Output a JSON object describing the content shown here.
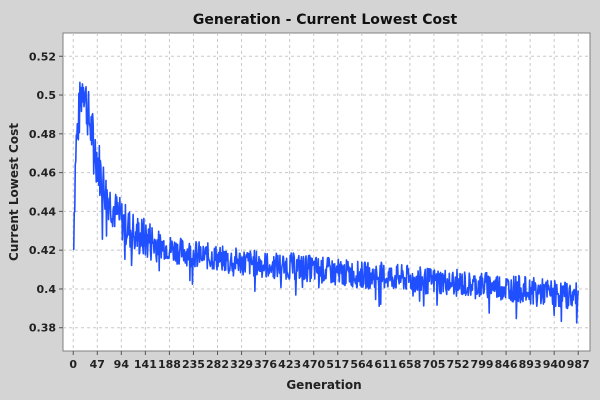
{
  "chart_data": {
    "type": "line",
    "title": "Generation - Current Lowest Cost",
    "xlabel": "Generation",
    "ylabel": "Current Lowest Cost",
    "xlim": [
      -20,
      1010
    ],
    "ylim": [
      0.368,
      0.532
    ],
    "x_ticks": [
      0,
      47,
      94,
      141,
      188,
      235,
      282,
      329,
      376,
      423,
      470,
      517,
      564,
      611,
      658,
      705,
      752,
      799,
      846,
      893,
      940,
      987
    ],
    "y_ticks": [
      0.38,
      0.4,
      0.42,
      0.44,
      0.46,
      0.48,
      0.5,
      0.52
    ],
    "y_tick_labels": [
      "0.38",
      "0.4",
      "0.42",
      "0.44",
      "0.46",
      "0.48",
      "0.5",
      "0.52"
    ],
    "grid": true,
    "colors": {
      "background": "#d4d4d4",
      "plot_background": "#ffffff",
      "line": "#1f4fff",
      "grid": "#c8c8c8"
    },
    "series": [
      {
        "x": [
          0,
          5,
          10,
          15,
          20,
          25,
          30,
          35,
          40,
          45,
          50,
          55,
          60,
          70,
          80,
          90,
          100,
          110,
          120,
          130,
          140,
          160,
          180,
          200,
          220,
          240,
          260,
          280,
          300,
          330,
          360,
          390,
          420,
          450,
          480,
          510,
          540,
          570,
          600,
          630,
          660,
          690,
          720,
          750,
          780,
          810,
          840,
          870,
          900,
          930,
          960,
          987
        ],
        "values": [
          0.421,
          0.472,
          0.486,
          0.499,
          0.508,
          0.497,
          0.489,
          0.482,
          0.476,
          0.469,
          0.464,
          0.458,
          0.452,
          0.446,
          0.441,
          0.437,
          0.434,
          0.431,
          0.429,
          0.427,
          0.426,
          0.424,
          0.422,
          0.42,
          0.419,
          0.418,
          0.417,
          0.416,
          0.415,
          0.414,
          0.413,
          0.412,
          0.412,
          0.411,
          0.41,
          0.409,
          0.408,
          0.407,
          0.407,
          0.406,
          0.405,
          0.404,
          0.404,
          0.403,
          0.402,
          0.402,
          0.401,
          0.4,
          0.399,
          0.398,
          0.397,
          0.396
        ]
      }
    ]
  }
}
